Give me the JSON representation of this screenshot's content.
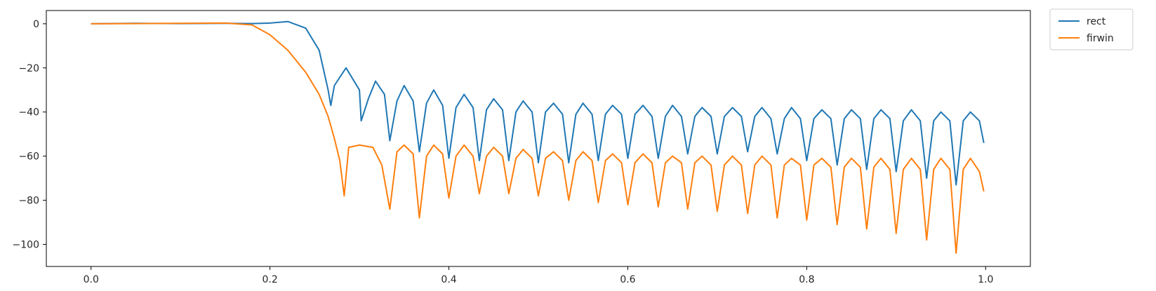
{
  "chart_data": {
    "type": "line",
    "title": "",
    "xlabel": "",
    "ylabel": "",
    "xlim": [
      -0.05,
      1.05
    ],
    "ylim": [
      -110,
      6
    ],
    "xticks": [
      0.0,
      0.2,
      0.4,
      0.6,
      0.8,
      1.0
    ],
    "xtick_labels": [
      "0.0",
      "0.2",
      "0.4",
      "0.6",
      "0.8",
      "1.0"
    ],
    "yticks": [
      0,
      -20,
      -40,
      -60,
      -80,
      -100
    ],
    "ytick_labels": [
      "0",
      "−20",
      "−40",
      "−60",
      "−80",
      "−100"
    ],
    "grid": false,
    "legend_position": "outside-top-right",
    "series": [
      {
        "name": "rect",
        "color": "#1f77b4",
        "x": [
          0.0,
          0.05,
          0.1,
          0.15,
          0.18,
          0.2,
          0.22,
          0.24,
          0.255,
          0.265,
          0.268,
          0.272,
          0.285,
          0.3,
          0.302,
          0.31,
          0.318,
          0.328,
          0.334,
          0.342,
          0.35,
          0.36,
          0.367,
          0.375,
          0.383,
          0.393,
          0.4,
          0.408,
          0.417,
          0.427,
          0.434,
          0.442,
          0.45,
          0.46,
          0.467,
          0.475,
          0.483,
          0.493,
          0.5,
          0.508,
          0.517,
          0.527,
          0.534,
          0.542,
          0.55,
          0.56,
          0.567,
          0.575,
          0.583,
          0.593,
          0.6,
          0.608,
          0.617,
          0.627,
          0.634,
          0.642,
          0.65,
          0.66,
          0.667,
          0.675,
          0.683,
          0.693,
          0.7,
          0.708,
          0.717,
          0.727,
          0.734,
          0.742,
          0.75,
          0.76,
          0.767,
          0.775,
          0.783,
          0.793,
          0.8,
          0.808,
          0.817,
          0.827,
          0.834,
          0.842,
          0.85,
          0.86,
          0.867,
          0.875,
          0.883,
          0.893,
          0.9,
          0.908,
          0.917,
          0.927,
          0.934,
          0.942,
          0.95,
          0.96,
          0.967,
          0.975,
          0.983,
          0.993,
          0.998
        ],
        "y": [
          0,
          0.2,
          0.1,
          0.2,
          0.1,
          0.3,
          1.0,
          -2,
          -12,
          -30,
          -37,
          -28,
          -20,
          -30,
          -44,
          -34,
          -26,
          -32,
          -53,
          -35,
          -28,
          -35,
          -58,
          -36,
          -30,
          -37,
          -61,
          -38,
          -32,
          -38,
          -62,
          -39,
          -34,
          -39,
          -62,
          -40,
          -35,
          -40,
          -63,
          -40,
          -36,
          -41,
          -63,
          -41,
          -36,
          -41,
          -62,
          -41,
          -37,
          -41,
          -61,
          -41,
          -37,
          -42,
          -61,
          -42,
          -37,
          -42,
          -59,
          -42,
          -38,
          -42,
          -59,
          -42,
          -38,
          -42,
          -58,
          -42,
          -38,
          -43,
          -59,
          -43,
          -38,
          -43,
          -62,
          -43,
          -39,
          -43,
          -64,
          -43,
          -39,
          -43,
          -66,
          -43,
          -39,
          -43,
          -67,
          -44,
          -39,
          -44,
          -70,
          -44,
          -40,
          -44,
          -73,
          -44,
          -40,
          -44,
          -54
        ]
      },
      {
        "name": "firwin",
        "color": "#ff7f0e",
        "x": [
          0.0,
          0.05,
          0.1,
          0.15,
          0.18,
          0.2,
          0.22,
          0.24,
          0.255,
          0.265,
          0.272,
          0.278,
          0.283,
          0.288,
          0.3,
          0.315,
          0.325,
          0.334,
          0.342,
          0.35,
          0.36,
          0.367,
          0.375,
          0.383,
          0.393,
          0.4,
          0.408,
          0.417,
          0.427,
          0.434,
          0.442,
          0.45,
          0.46,
          0.467,
          0.475,
          0.483,
          0.493,
          0.5,
          0.508,
          0.517,
          0.527,
          0.534,
          0.542,
          0.55,
          0.56,
          0.567,
          0.575,
          0.583,
          0.593,
          0.6,
          0.608,
          0.617,
          0.627,
          0.634,
          0.642,
          0.65,
          0.66,
          0.667,
          0.675,
          0.683,
          0.693,
          0.7,
          0.708,
          0.717,
          0.727,
          0.734,
          0.742,
          0.75,
          0.76,
          0.767,
          0.775,
          0.783,
          0.793,
          0.8,
          0.808,
          0.817,
          0.827,
          0.834,
          0.842,
          0.85,
          0.86,
          0.867,
          0.875,
          0.883,
          0.893,
          0.9,
          0.908,
          0.917,
          0.927,
          0.934,
          0.942,
          0.95,
          0.96,
          0.967,
          0.975,
          0.983,
          0.993,
          0.998
        ],
        "y": [
          0,
          0.1,
          0.2,
          0.3,
          -0.5,
          -5,
          -12,
          -22,
          -32,
          -42,
          -52,
          -62,
          -78,
          -56,
          -55,
          -56,
          -64,
          -84,
          -58,
          -55,
          -59,
          -88,
          -60,
          -55,
          -59,
          -79,
          -60,
          -55,
          -60,
          -77,
          -60,
          -56,
          -60,
          -77,
          -61,
          -57,
          -61,
          -78,
          -61,
          -58,
          -62,
          -80,
          -62,
          -58,
          -62,
          -81,
          -62,
          -59,
          -63,
          -82,
          -63,
          -59,
          -63,
          -83,
          -63,
          -60,
          -63,
          -84,
          -63,
          -60,
          -64,
          -85,
          -64,
          -60,
          -64,
          -86,
          -64,
          -60,
          -64,
          -88,
          -64,
          -61,
          -64,
          -89,
          -64,
          -61,
          -65,
          -91,
          -65,
          -61,
          -65,
          -93,
          -65,
          -61,
          -66,
          -95,
          -66,
          -61,
          -66,
          -98,
          -66,
          -61,
          -66,
          -104,
          -66,
          -61,
          -67,
          -76
        ]
      }
    ]
  }
}
